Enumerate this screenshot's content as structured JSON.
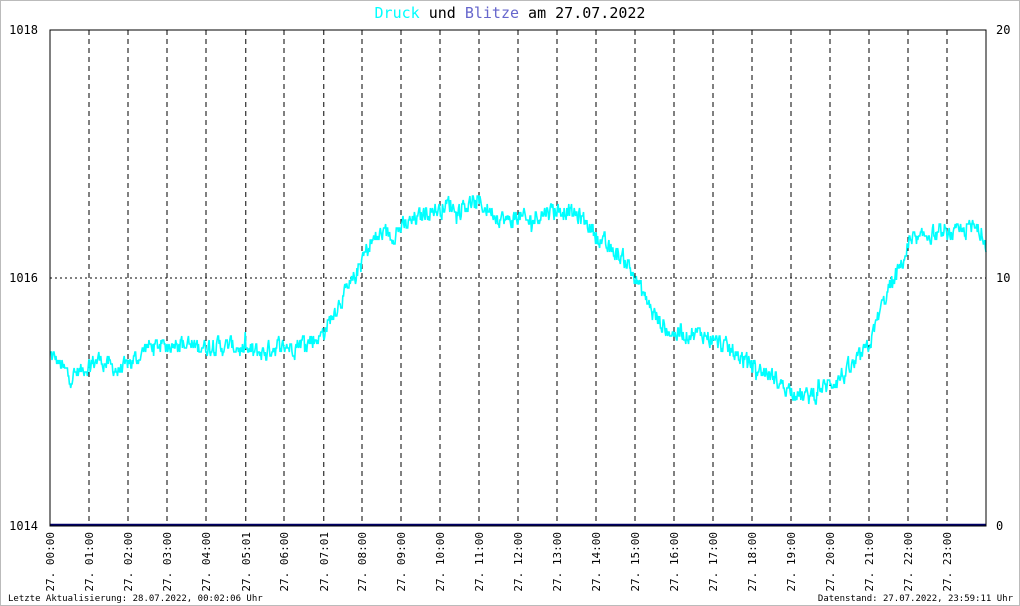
{
  "title": {
    "part1": "Druck",
    "part2": " und ",
    "part3": "Blitze",
    "part4": " am 27.07.2022",
    "color_druck": "#00ffff",
    "color_blitze": "#6666cc",
    "color_rest": "#000000"
  },
  "footer": {
    "left": "Letzte Aktualisierung: 28.07.2022, 00:02:06 Uhr",
    "right": "Datenstand: 27.07.2022, 23:59:11 Uhr"
  },
  "colors": {
    "druck": "#00ffff",
    "blitze": "#000066",
    "grid": "#000000",
    "frame": "#000000"
  },
  "chart_data": {
    "type": "line",
    "title": "Druck und Blitze am 27.07.2022",
    "ylim_left": [
      1014,
      1018
    ],
    "ylim_right": [
      0,
      20
    ],
    "yticks_left": [
      "1018",
      "1016",
      "1014"
    ],
    "yticks_right": [
      "20",
      "10",
      "0"
    ],
    "xticks": [
      "27. 00:00",
      "27. 01:00",
      "27. 02:00",
      "27. 03:00",
      "27. 04:00",
      "27. 05:01",
      "27. 06:00",
      "27. 07:01",
      "27. 08:00",
      "27. 09:00",
      "27. 10:00",
      "27. 11:00",
      "27. 12:00",
      "27. 13:00",
      "27. 14:00",
      "27. 15:00",
      "27. 16:00",
      "27. 17:00",
      "27. 18:00",
      "27. 19:00",
      "27. 20:00",
      "27. 21:00",
      "27. 22:00",
      "27. 23:00"
    ],
    "xtick_hours": [
      0,
      1,
      2,
      3,
      4,
      5.02,
      6,
      7.02,
      8,
      9,
      10,
      11,
      12,
      13,
      14,
      15,
      16,
      17,
      18,
      19,
      20,
      21,
      22,
      23
    ],
    "x_range_hours": [
      0,
      24
    ],
    "grid": true,
    "series": [
      {
        "name": "Druck",
        "axis": "left",
        "x_hours": [
          0,
          0.25,
          0.5,
          0.75,
          1,
          1.25,
          1.5,
          1.75,
          2,
          2.25,
          2.5,
          2.75,
          3,
          3.25,
          3.5,
          3.75,
          4,
          4.25,
          4.5,
          4.75,
          5,
          5.25,
          5.5,
          5.75,
          6,
          6.25,
          6.5,
          6.75,
          7,
          7.25,
          7.5,
          7.75,
          8,
          8.25,
          8.5,
          8.75,
          9,
          9.25,
          9.5,
          9.75,
          10,
          10.25,
          10.5,
          10.75,
          11,
          11.25,
          11.5,
          11.75,
          12,
          12.25,
          12.5,
          12.75,
          13,
          13.25,
          13.5,
          13.75,
          14,
          14.25,
          14.5,
          14.75,
          15,
          15.25,
          15.5,
          15.75,
          16,
          16.25,
          16.5,
          16.75,
          17,
          17.25,
          17.5,
          17.75,
          18,
          18.25,
          18.5,
          18.75,
          19,
          19.25,
          19.5,
          19.75,
          20,
          20.25,
          20.5,
          20.75,
          21,
          21.25,
          21.5,
          21.75,
          22,
          22.25,
          22.5,
          22.75,
          23,
          23.25,
          23.5,
          23.75,
          24
        ],
        "values": [
          1015.4,
          1015.3,
          1015.2,
          1015.25,
          1015.3,
          1015.35,
          1015.3,
          1015.25,
          1015.3,
          1015.35,
          1015.45,
          1015.45,
          1015.45,
          1015.5,
          1015.45,
          1015.45,
          1015.45,
          1015.45,
          1015.45,
          1015.45,
          1015.4,
          1015.4,
          1015.4,
          1015.45,
          1015.45,
          1015.45,
          1015.5,
          1015.5,
          1015.55,
          1015.7,
          1015.85,
          1015.95,
          1016.15,
          1016.3,
          1016.35,
          1016.35,
          1016.4,
          1016.45,
          1016.5,
          1016.55,
          1016.55,
          1016.6,
          1016.55,
          1016.6,
          1016.6,
          1016.55,
          1016.5,
          1016.45,
          1016.5,
          1016.45,
          1016.5,
          1016.55,
          1016.55,
          1016.55,
          1016.5,
          1016.45,
          1016.35,
          1016.25,
          1016.2,
          1016.15,
          1016.0,
          1015.85,
          1015.7,
          1015.6,
          1015.55,
          1015.55,
          1015.55,
          1015.55,
          1015.5,
          1015.45,
          1015.4,
          1015.35,
          1015.3,
          1015.25,
          1015.2,
          1015.15,
          1015.1,
          1015.05,
          1015.05,
          1015.1,
          1015.15,
          1015.2,
          1015.25,
          1015.35,
          1015.45,
          1015.7,
          1015.9,
          1016.05,
          1016.25,
          1016.3,
          1016.35,
          1016.35,
          1016.35,
          1016.35,
          1016.4,
          1016.4,
          1016.3
        ]
      },
      {
        "name": "Blitze",
        "axis": "right",
        "x_hours": [
          0,
          24
        ],
        "values": [
          0,
          0
        ]
      }
    ]
  }
}
